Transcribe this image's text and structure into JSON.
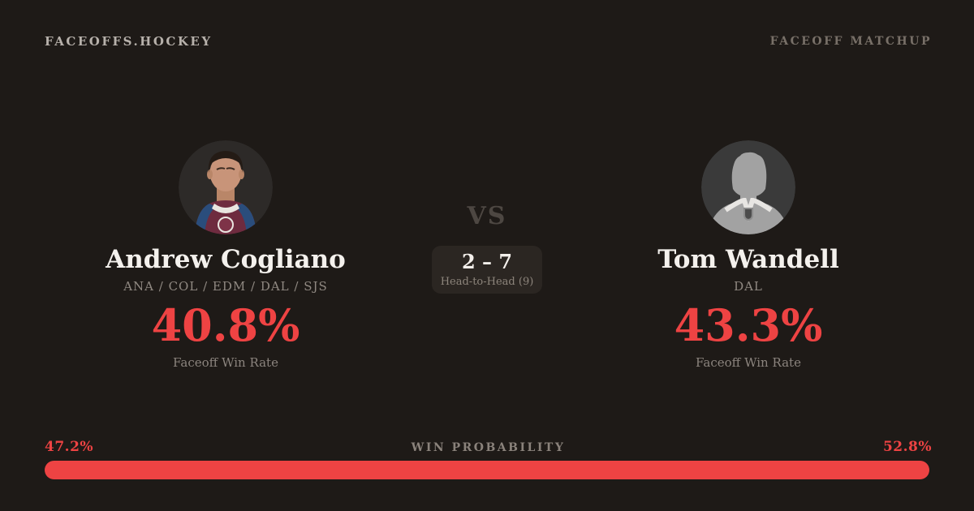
{
  "page": {
    "background": "#1e1a17",
    "accent_red": "#ee4343"
  },
  "header": {
    "brand": "FACEOFFS.HOCKEY",
    "label": "FACEOFF MATCHUP"
  },
  "players": {
    "left": {
      "name": "Andrew Cogliano",
      "teams": "ANA / COL / EDM / DAL / SJS",
      "win_rate": "40.8%",
      "win_rate_label": "Faceoff Win Rate",
      "avatar_icon": "player-photo-avatar"
    },
    "right": {
      "name": "Tom Wandell",
      "teams": "DAL",
      "win_rate": "43.3%",
      "win_rate_label": "Faceoff Win Rate",
      "avatar_icon": "generic-player-silhouette"
    }
  },
  "center": {
    "vs": "VS",
    "h2h_score": "2 – 7",
    "h2h_label": "Head-to-Head (9)"
  },
  "probability": {
    "title": "WIN PROBABILITY",
    "left_label": "47.2%",
    "right_label": "52.8%",
    "left_value": 47.2,
    "right_value": 52.8
  }
}
